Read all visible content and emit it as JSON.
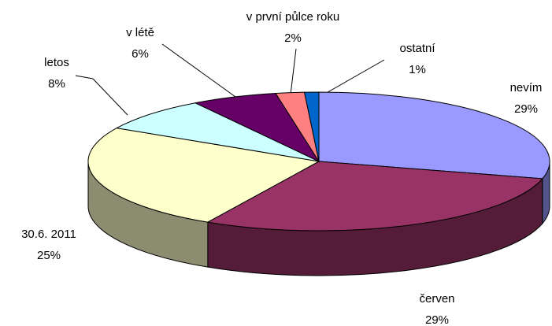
{
  "chart_data": {
    "type": "pie",
    "categories": [
      "nevím",
      "červen",
      "30.6. 2011",
      "letos",
      "v létě",
      "v první půlce roku",
      "ostatní"
    ],
    "values": [
      29,
      29,
      25,
      8,
      6,
      2,
      1
    ],
    "value_labels": [
      "29%",
      "29%",
      "25%",
      "8%",
      "6%",
      "2%",
      "1%"
    ],
    "colors": [
      "#9999ff",
      "#993366",
      "#ffffcc",
      "#ccffff",
      "#660066",
      "#ff8080",
      "#0066cc"
    ]
  }
}
